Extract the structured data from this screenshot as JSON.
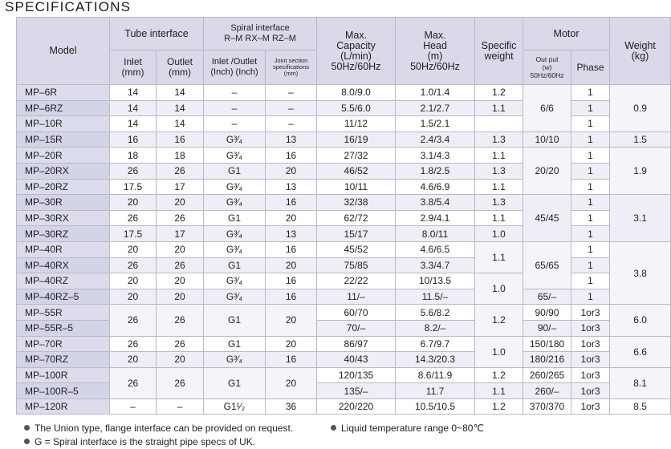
{
  "title": "SPECIFICATIONS",
  "headers": {
    "model": "Model",
    "tube_interface": "Tube interface",
    "inlet": "Inlet\n(mm)",
    "outlet": "Outlet\n(mm)",
    "spiral_interface": "Spiral interface\nR–M RX–M RZ–M",
    "inlet_outlet_inch": "Inlet /Outlet\n(Inch) (Inch)",
    "joint_section": "Joint section\nspecifications\n(mm)",
    "max_capacity": "Max.\nCapacity\n(L/min)\n50Hz/60Hz",
    "max_head": "Max.\nHead\n(m)\n50Hz/60Hz",
    "specific_weight": "Specific\nweight",
    "motor": "Motor",
    "output": "Out put\n(w)\n50Hz/60Hz",
    "phase": "Phase",
    "weight": "Weight\n(kg)"
  },
  "rows": [
    {
      "model": "MP–6R",
      "inlet": "14",
      "outlet": "14",
      "spiral": "–",
      "joint": "–",
      "capacity": "8.0/9.0",
      "head": "1.0/1.4",
      "phase": "1"
    },
    {
      "model": "MP–6RZ",
      "inlet": "14",
      "outlet": "14",
      "spiral": "–",
      "joint": "–",
      "capacity": "5.5/6.0",
      "head": "2.1/2.7",
      "phase": "1"
    },
    {
      "model": "MP–10R",
      "inlet": "14",
      "outlet": "14",
      "spiral": "–",
      "joint": "–",
      "capacity": "11/12",
      "head": "1.5/2.1",
      "phase": "1"
    },
    {
      "model": "MP–15R",
      "inlet": "16",
      "outlet": "16",
      "spiral": "G³⁄₄",
      "joint": "13",
      "capacity": "16/19",
      "head": "2.4/3.4",
      "phase": "1"
    },
    {
      "model": "MP–20R",
      "inlet": "18",
      "outlet": "18",
      "spiral": "G³⁄₄",
      "joint": "16",
      "capacity": "27/32",
      "head": "3.1/4.3",
      "phase": "1"
    },
    {
      "model": "MP–20RX",
      "inlet": "26",
      "outlet": "26",
      "spiral": "G1",
      "joint": "20",
      "capacity": "46/52",
      "head": "1.8/2.5",
      "phase": "1"
    },
    {
      "model": "MP–20RZ",
      "inlet": "17.5",
      "outlet": "17",
      "spiral": "G³⁄₄",
      "joint": "13",
      "capacity": "10/11",
      "head": "4.6/6.9",
      "phase": "1"
    },
    {
      "model": "MP–30R",
      "inlet": "20",
      "outlet": "20",
      "spiral": "G³⁄₄",
      "joint": "16",
      "capacity": "32/38",
      "head": "3.8/5.4",
      "phase": "1"
    },
    {
      "model": "MP–30RX",
      "inlet": "26",
      "outlet": "26",
      "spiral": "G1",
      "joint": "20",
      "capacity": "62/72",
      "head": "2.9/4.1",
      "phase": "1"
    },
    {
      "model": "MP–30RZ",
      "inlet": "17.5",
      "outlet": "17",
      "spiral": "G³⁄₄",
      "joint": "13",
      "capacity": "15/17",
      "head": "8.0/11",
      "phase": "1"
    },
    {
      "model": "MP–40R",
      "inlet": "20",
      "outlet": "20",
      "spiral": "G³⁄₄",
      "joint": "16",
      "capacity": "45/52",
      "head": "4.6/6.5",
      "phase": "1"
    },
    {
      "model": "MP–40RX",
      "inlet": "26",
      "outlet": "26",
      "spiral": "G1",
      "joint": "20",
      "capacity": "75/85",
      "head": "3.3/4.7",
      "phase": "1"
    },
    {
      "model": "MP–40RZ",
      "inlet": "20",
      "outlet": "20",
      "spiral": "G³⁄₄",
      "joint": "16",
      "capacity": "22/22",
      "head": "10/13.5",
      "phase": "1"
    },
    {
      "model": "MP–40RZ–5",
      "inlet": "20",
      "outlet": "20",
      "spiral": "G³⁄₄",
      "joint": "16",
      "capacity": "11/–",
      "head": "11.5/–",
      "phase": "1"
    },
    {
      "model": "MP–55R",
      "inlet": "",
      "outlet": "",
      "spiral": "",
      "joint": "",
      "capacity": "60/70",
      "head": "5.6/8.2",
      "phase": "1or3"
    },
    {
      "model": "MP–55R–5",
      "inlet": "",
      "outlet": "",
      "spiral": "",
      "joint": "",
      "capacity": "70/–",
      "head": "8.2/–",
      "phase": "1or3"
    },
    {
      "model": "MP–70R",
      "inlet": "26",
      "outlet": "26",
      "spiral": "G1",
      "joint": "20",
      "capacity": "86/97",
      "head": "6.7/9.7",
      "phase": "1or3"
    },
    {
      "model": "MP–70RZ",
      "inlet": "20",
      "outlet": "20",
      "spiral": "G³⁄₄",
      "joint": "16",
      "capacity": "40/43",
      "head": "14.3/20.3",
      "phase": "1or3"
    },
    {
      "model": "MP–100R",
      "inlet": "",
      "outlet": "",
      "spiral": "",
      "joint": "",
      "capacity": "120/135",
      "head": "8.6/11.9",
      "phase": "1or3"
    },
    {
      "model": "MP–100R–5",
      "inlet": "",
      "outlet": "",
      "spiral": "",
      "joint": "",
      "capacity": "135/–",
      "head": "11.7",
      "phase": "1or3"
    },
    {
      "model": "MP–120R",
      "inlet": "–",
      "outlet": "–",
      "spiral": "G1¹⁄₂",
      "joint": "36",
      "capacity": "220/220",
      "head": "10.5/10.5",
      "phase": "1or3"
    }
  ],
  "merged": {
    "mp55_inlet": "26",
    "mp55_outlet": "26",
    "mp55_spiral": "G1",
    "mp55_joint": "20",
    "mp100_inlet": "26",
    "mp100_outlet": "26",
    "mp100_spiral": "G1",
    "mp100_joint": "20",
    "sw_6r": "1.2",
    "sw_6rz": "1.1",
    "sw_15r": "1.3",
    "sw_20r": "1.1",
    "sw_20rx": "1.3",
    "sw_20rz": "1.1",
    "sw_30r": "1.3",
    "sw_30rx": "1.1",
    "sw_30rz": "1.0",
    "sw_40r_rx": "1.1",
    "sw_40rz": "1.0",
    "sw_55r": "1.2",
    "sw_70r": "1.0",
    "sw_100r": "1.2",
    "sw_100r5": "1.1",
    "sw_120r": "1.2",
    "out_6": "6/6",
    "out_15": "10/10",
    "out_20": "20/20",
    "out_30": "45/45",
    "out_40": "65/65",
    "out_40rz5": "65/–",
    "out_55r": "90/90",
    "out_55r5": "90/–",
    "out_70r": "150/180",
    "out_70rz": "180/216",
    "out_100r": "260/265",
    "out_100r5": "260/–",
    "out_120r": "370/370",
    "w_6": "0.9",
    "w_15": "1.5",
    "w_20": "1.9",
    "w_30": "3.1",
    "w_40": "3.8",
    "w_55": "6.0",
    "w_70": "6.6",
    "w_100": "8.1",
    "w_120": "8.5"
  },
  "notes": [
    "The Union type, flange interface can be provided on request.",
    "Liquid temperature range 0~80℃",
    "G = Spiral interface is the straight pipe specs of UK."
  ]
}
